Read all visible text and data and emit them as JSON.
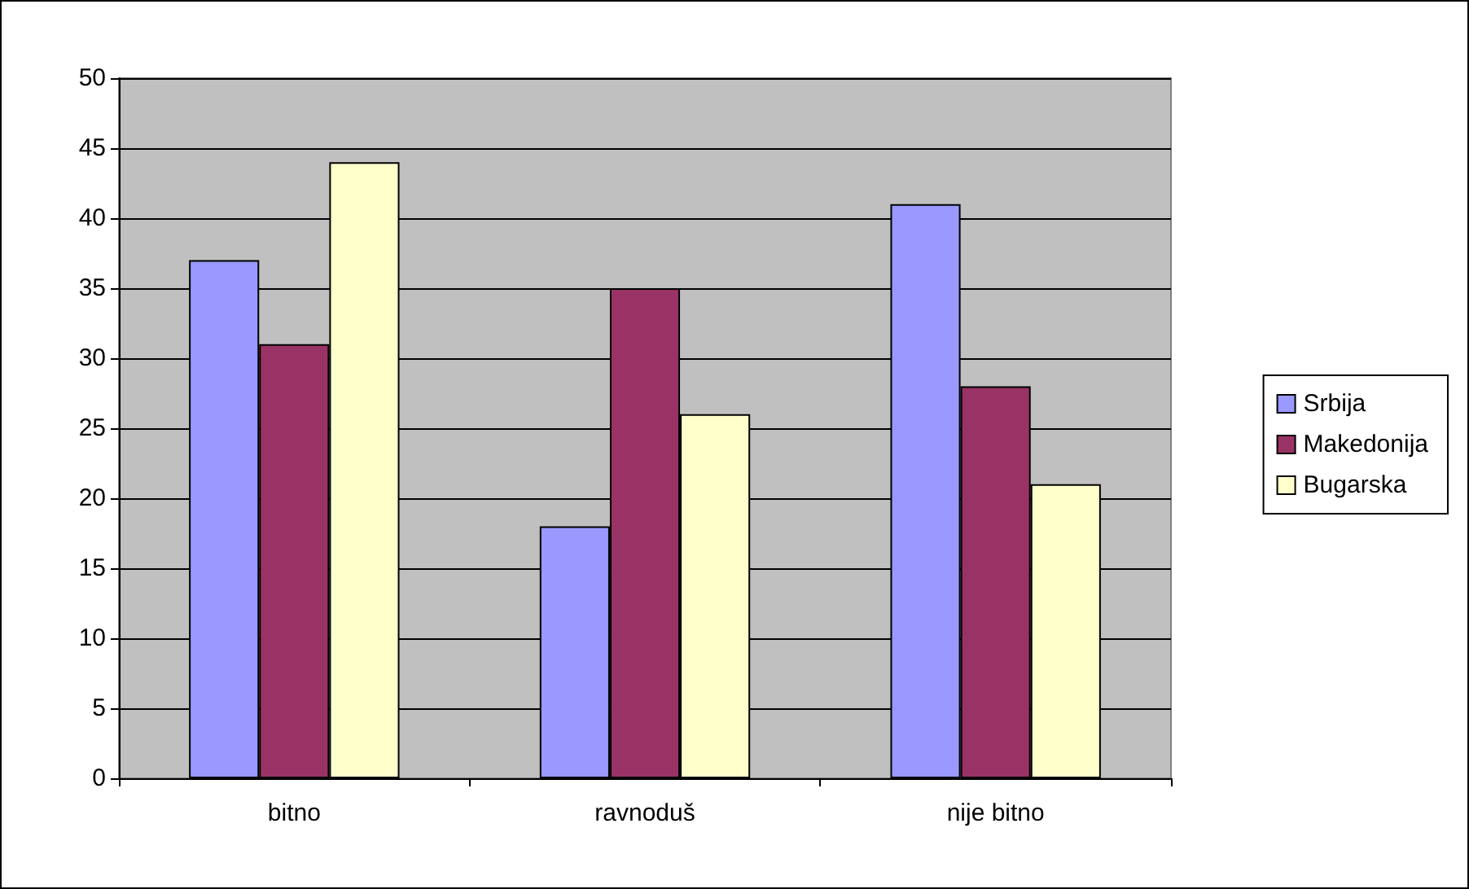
{
  "chart_data": {
    "type": "bar",
    "categories": [
      "bitno",
      "ravnoduš",
      "nije bitno"
    ],
    "series": [
      {
        "name": "Srbija",
        "color": "#9999ff",
        "values": [
          37,
          18,
          41
        ]
      },
      {
        "name": "Makedonija",
        "color": "#993366",
        "values": [
          31,
          35,
          28
        ]
      },
      {
        "name": "Bugarska",
        "color": "#ffffcc",
        "values": [
          44,
          26,
          21
        ]
      }
    ],
    "ylim": [
      0,
      50
    ],
    "yticks": [
      0,
      5,
      10,
      15,
      20,
      25,
      30,
      35,
      40,
      45,
      50
    ],
    "grid": "y",
    "legend": "right"
  }
}
